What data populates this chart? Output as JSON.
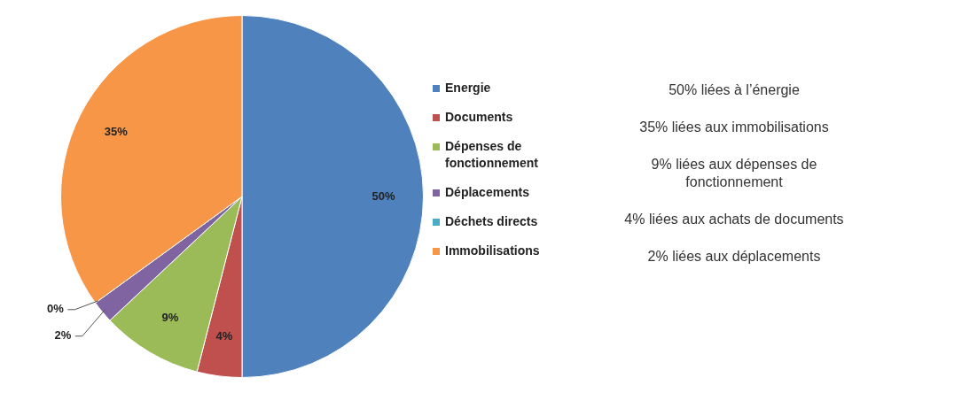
{
  "chart_data": {
    "type": "pie",
    "categories": [
      "Energie",
      "Documents",
      "Dépenses de fonctionnement",
      "Déplacements",
      "Déchets directs",
      "Immobilisations"
    ],
    "values": [
      50,
      4,
      9,
      2,
      0,
      35
    ],
    "colors": [
      "#4f81bd",
      "#c0504d",
      "#9bbb59",
      "#8064a2",
      "#4bacc6",
      "#f79646"
    ],
    "value_labels": [
      "50%",
      "4%",
      "9%",
      "2%",
      "0%",
      "35%"
    ],
    "legend": "right",
    "annotations": [
      "50% liées à l’énergie",
      "35% liées aux immobilisations",
      "9% liées aux dépenses de fonctionnement",
      "4% liées aux achats de documents",
      "2% liées aux déplacements"
    ]
  }
}
